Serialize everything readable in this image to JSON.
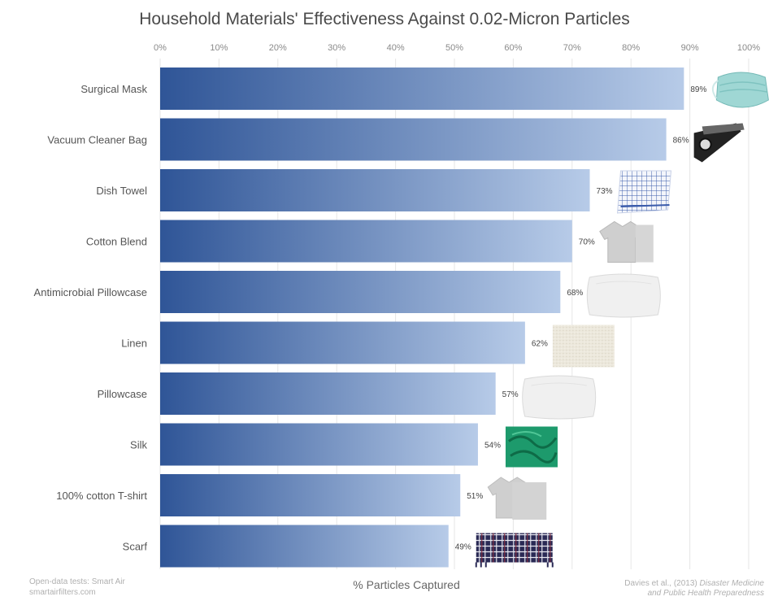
{
  "chart_data": {
    "type": "bar",
    "orientation": "horizontal",
    "title": "Household Materials' Effectiveness Against 0.02-Micron Particles",
    "xlabel": "% Particles Captured",
    "ylabel": "",
    "xlim": [
      0,
      100
    ],
    "x_ticks": [
      "0%",
      "10%",
      "20%",
      "30%",
      "40%",
      "50%",
      "60%",
      "70%",
      "80%",
      "90%",
      "100%"
    ],
    "x_tick_position": "top",
    "grid": true,
    "categories": [
      "Surgical Mask",
      "Vacuum Cleaner Bag",
      "Dish Towel",
      "Cotton Blend",
      "Antimicrobial Pillowcase",
      "Linen",
      "Pillowcase",
      "Silk",
      "100% cotton T-shirt",
      "Scarf"
    ],
    "values": [
      89,
      86,
      73,
      70,
      68,
      62,
      57,
      54,
      51,
      49
    ],
    "value_labels": [
      "89%",
      "86%",
      "73%",
      "70%",
      "68%",
      "62%",
      "57%",
      "54%",
      "51%",
      "49%"
    ],
    "bar_gradient": [
      "#2f5597",
      "#b7cbe8"
    ],
    "source_left": [
      "Open-data tests: Smart Air",
      "smartairfilters.com"
    ],
    "source_right": {
      "line1_plain": "Davies et al., (2013) ",
      "line1_italic": "Disaster Medicine",
      "line2_italic": "and Public Health Preparedness"
    },
    "material_icons": [
      "surgical-mask-icon",
      "vacuum-bag-icon",
      "dish-towel-icon",
      "cotton-blend-shirt-icon",
      "pillow-icon",
      "linen-swatch-icon",
      "pillow-icon",
      "silk-swatch-icon",
      "tshirt-icon",
      "scarf-icon"
    ]
  }
}
